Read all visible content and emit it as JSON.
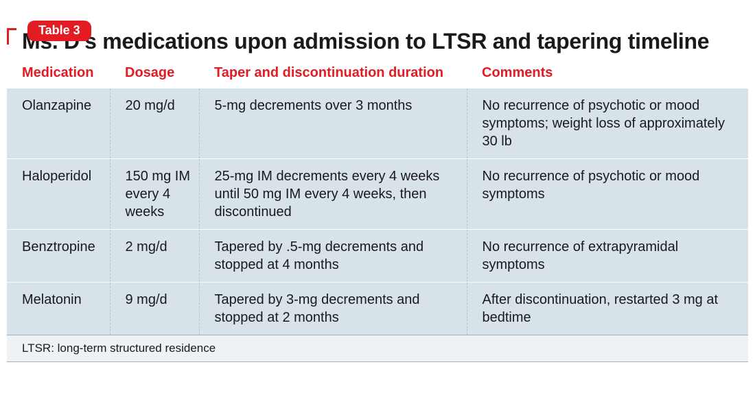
{
  "colors": {
    "accent": "#e31b23",
    "row_bg": "#d8e2e9",
    "footnote_bg": "#eef2f5",
    "text": "#1a1a1a"
  },
  "badge": "Table 3",
  "title": "Ms. D's medications upon admission to LTSR and tapering timeline",
  "table": {
    "columns": [
      "Medication",
      "Dosage",
      "Taper and discontinuation duration",
      "Comments"
    ],
    "rows": [
      {
        "medication": "Olanzapine",
        "dosage": "20 mg/d",
        "taper": "5-mg decrements over 3 months",
        "comments": "No recurrence of psychotic or mood symptoms; weight loss of approximately 30 lb"
      },
      {
        "medication": "Haloperidol",
        "dosage": "150 mg IM every 4 weeks",
        "taper": "25-mg IM decrements every 4 weeks until 50 mg IM every 4 weeks, then discontinued",
        "comments": "No recurrence of psychotic or mood symptoms"
      },
      {
        "medication": "Benztropine",
        "dosage": "2 mg/d",
        "taper": "Tapered by .5-mg decrements and stopped at 4 months",
        "comments": "No recurrence of extrapyramidal symptoms"
      },
      {
        "medication": "Melatonin",
        "dosage": "9 mg/d",
        "taper": "Tapered by 3-mg decrements and stopped at 2 months",
        "comments": "After discontinuation, restarted 3 mg at bedtime"
      }
    ],
    "footnote": "LTSR: long-term structured residence"
  },
  "typography": {
    "badge_fontsize": 18,
    "title_fontsize": 32,
    "header_fontsize": 20,
    "cell_fontsize": 20,
    "footnote_fontsize": 17
  }
}
